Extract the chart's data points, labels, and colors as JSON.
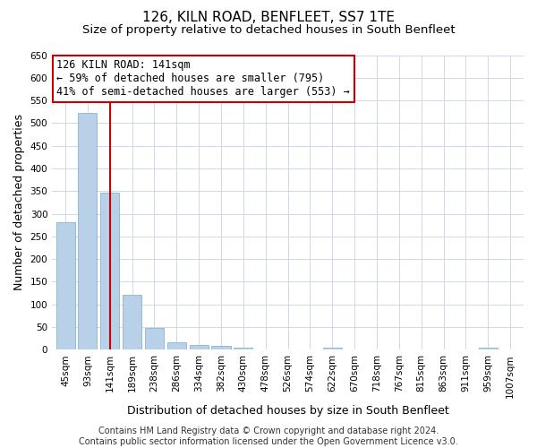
{
  "title": "126, KILN ROAD, BENFLEET, SS7 1TE",
  "subtitle": "Size of property relative to detached houses in South Benfleet",
  "xlabel": "Distribution of detached houses by size in South Benfleet",
  "ylabel": "Number of detached properties",
  "footer_line1": "Contains HM Land Registry data © Crown copyright and database right 2024.",
  "footer_line2": "Contains public sector information licensed under the Open Government Licence v3.0.",
  "categories": [
    "45sqm",
    "93sqm",
    "141sqm",
    "189sqm",
    "238sqm",
    "286sqm",
    "334sqm",
    "382sqm",
    "430sqm",
    "478sqm",
    "526sqm",
    "574sqm",
    "622sqm",
    "670sqm",
    "718sqm",
    "767sqm",
    "815sqm",
    "863sqm",
    "911sqm",
    "959sqm",
    "1007sqm"
  ],
  "values": [
    281,
    522,
    346,
    122,
    48,
    17,
    11,
    9,
    5,
    0,
    0,
    0,
    5,
    0,
    0,
    0,
    0,
    0,
    0,
    5,
    0
  ],
  "bar_color": "#b8d0e8",
  "bar_edge_color": "#7aaac8",
  "highlight_index": 2,
  "highlight_color": "#cc0000",
  "ylim": [
    0,
    650
  ],
  "yticks": [
    0,
    50,
    100,
    150,
    200,
    250,
    300,
    350,
    400,
    450,
    500,
    550,
    600,
    650
  ],
  "annotation_line1": "126 KILN ROAD: 141sqm",
  "annotation_line2": "← 59% of detached houses are smaller (795)",
  "annotation_line3": "41% of semi-detached houses are larger (553) →",
  "annotation_box_color": "#ffffff",
  "annotation_box_edge": "#cc0000",
  "grid_color": "#d0d8e8",
  "bg_color": "#ffffff",
  "title_fontsize": 11,
  "subtitle_fontsize": 9.5,
  "xlabel_fontsize": 9,
  "ylabel_fontsize": 9,
  "tick_fontsize": 7.5,
  "annotation_fontsize": 8.5,
  "footer_fontsize": 7
}
